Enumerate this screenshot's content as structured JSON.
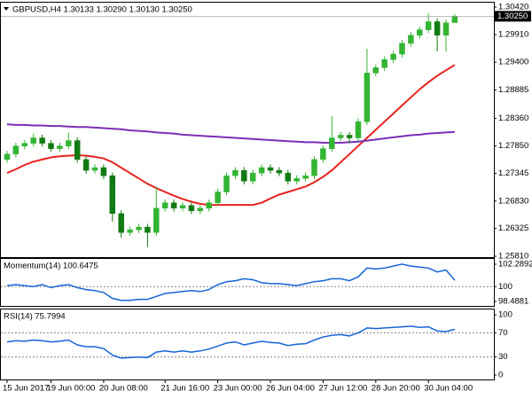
{
  "chart_data": [
    {
      "type": "candlestick",
      "title": "GBPUSD,H4  1.30133 1.30290 1.30130 1.30250",
      "x": [
        "15 Jun 2017",
        null,
        null,
        null,
        null,
        "19 Jun 00:00",
        null,
        null,
        null,
        null,
        null,
        "20 Jun 08:00",
        null,
        null,
        null,
        null,
        null,
        null,
        "21 Jun 16:00",
        null,
        null,
        null,
        null,
        null,
        "23 Jun 00:00",
        null,
        null,
        null,
        null,
        null,
        "26 Jun 04:00",
        null,
        null,
        null,
        null,
        null,
        "27 Jun 12:00",
        null,
        null,
        null,
        null,
        null,
        "28 Jun 20:00",
        null,
        null,
        null,
        null,
        null,
        "30 Jun 04:00",
        null,
        null,
        null
      ],
      "open": [
        1.276,
        1.277,
        1.2785,
        1.279,
        1.28,
        1.279,
        1.278,
        1.2785,
        1.2795,
        1.276,
        1.274,
        1.2745,
        1.273,
        1.266,
        1.2625,
        1.263,
        1.2635,
        1.2625,
        1.267,
        1.268,
        1.267,
        1.2675,
        1.2665,
        1.267,
        1.268,
        1.27,
        1.273,
        1.274,
        1.272,
        1.2735,
        1.2745,
        1.274,
        1.2735,
        1.272,
        1.2725,
        1.273,
        1.276,
        1.278,
        1.28,
        1.2805,
        1.28,
        1.283,
        1.292,
        1.293,
        1.2945,
        1.2955,
        1.2975,
        1.299,
        1.3,
        1.3015,
        1.299,
        1.30133
      ],
      "high": [
        1.2776,
        1.2791,
        1.2796,
        1.2808,
        1.2806,
        1.2796,
        1.2791,
        1.281,
        1.2801,
        1.2766,
        1.2751,
        1.2751,
        1.2736,
        1.2666,
        1.2636,
        1.2641,
        1.2641,
        1.271,
        1.2686,
        1.2686,
        1.2681,
        1.2681,
        1.2676,
        1.2686,
        1.2706,
        1.2736,
        1.2746,
        1.2746,
        1.2741,
        1.2751,
        1.2751,
        1.2746,
        1.2741,
        1.2731,
        1.2736,
        1.2766,
        1.2786,
        1.284,
        1.2811,
        1.2811,
        1.2836,
        1.2965,
        1.2936,
        1.2951,
        1.2961,
        1.2981,
        1.2996,
        1.3006,
        1.303,
        1.3021,
        1.3019,
        1.3029
      ],
      "low": [
        1.2754,
        1.2764,
        1.2779,
        1.2784,
        1.2784,
        1.2774,
        1.2774,
        1.2779,
        1.2754,
        1.2734,
        1.2734,
        1.2724,
        1.2645,
        1.2615,
        1.2619,
        1.2624,
        1.2598,
        1.2619,
        1.2664,
        1.2664,
        1.2664,
        1.2659,
        1.2659,
        1.2664,
        1.2674,
        1.2694,
        1.2724,
        1.2714,
        1.2714,
        1.2729,
        1.2734,
        1.2729,
        1.2714,
        1.2714,
        1.2719,
        1.2724,
        1.2754,
        1.2774,
        1.2794,
        1.279,
        1.2794,
        1.2824,
        1.2914,
        1.2924,
        1.2939,
        1.2949,
        1.2969,
        1.2984,
        1.2994,
        1.296,
        1.296,
        1.3013
      ],
      "close": [
        1.277,
        1.2785,
        1.279,
        1.28,
        1.279,
        1.278,
        1.2785,
        1.2795,
        1.276,
        1.274,
        1.2745,
        1.273,
        1.266,
        1.2625,
        1.263,
        1.2635,
        1.2625,
        1.267,
        1.268,
        1.267,
        1.2675,
        1.2665,
        1.267,
        1.268,
        1.27,
        1.273,
        1.274,
        1.272,
        1.2735,
        1.2745,
        1.274,
        1.2735,
        1.272,
        1.2725,
        1.273,
        1.276,
        1.278,
        1.28,
        1.2805,
        1.28,
        1.283,
        1.292,
        1.293,
        1.2945,
        1.2955,
        1.2975,
        1.299,
        1.3,
        1.3015,
        1.299,
        1.3013,
        1.3025
      ],
      "up_color": "#33b533",
      "down_color": "#127a12",
      "series": [
        {
          "color": "#e8231e",
          "values": [
            1.2735,
            1.2742,
            1.275,
            1.2756,
            1.276,
            1.2764,
            1.2766,
            1.2767,
            1.2768,
            1.2767,
            1.2765,
            1.2762,
            1.2755,
            1.2745,
            1.2735,
            1.2725,
            1.2715,
            1.2707,
            1.27,
            1.2693,
            1.2687,
            1.2682,
            1.2678,
            1.2676,
            1.2676,
            1.2676,
            1.2676,
            1.2676,
            1.2676,
            1.268,
            1.2688,
            1.2695,
            1.27,
            1.2705,
            1.271,
            1.2718,
            1.2728,
            1.274,
            1.2755,
            1.277,
            1.2785,
            1.28,
            1.2815,
            1.283,
            1.2845,
            1.286,
            1.2875,
            1.289,
            1.2903,
            1.2915,
            1.2925,
            1.2935
          ]
        },
        {
          "color": "#7e2fb5",
          "values": [
            1.2825,
            1.2824,
            1.2824,
            1.2823,
            1.2823,
            1.2822,
            1.2822,
            1.2821,
            1.282,
            1.282,
            1.2819,
            1.2818,
            1.2817,
            1.2816,
            1.2814,
            1.2813,
            1.2812,
            1.281,
            1.2809,
            1.2808,
            1.2806,
            1.2805,
            1.2804,
            1.2803,
            1.2802,
            1.2801,
            1.28,
            1.2799,
            1.2798,
            1.2797,
            1.2796,
            1.2795,
            1.2794,
            1.2793,
            1.2792,
            1.2792,
            1.2791,
            1.2791,
            1.2791,
            1.2792,
            1.2793,
            1.2795,
            1.2797,
            1.2799,
            1.2801,
            1.2803,
            1.2805,
            1.2806,
            1.2808,
            1.2809,
            1.281,
            1.2811
          ]
        }
      ],
      "ylim": [
        1.25794,
        1.30502
      ],
      "yticks": [
        {
          "value": 1.3042,
          "label": "1.30420"
        },
        {
          "value": 1.2991,
          "label": "1.29910"
        },
        {
          "value": 1.294,
          "label": "1.29400"
        },
        {
          "value": 1.28885,
          "label": "1.28885"
        },
        {
          "value": 1.2836,
          "label": "1.28360"
        },
        {
          "value": 1.2785,
          "label": "1.27850"
        },
        {
          "value": 1.27345,
          "label": "1.27345"
        },
        {
          "value": 1.2683,
          "label": "1.26830"
        },
        {
          "value": 1.26325,
          "label": "1.26325"
        },
        {
          "value": 1.2581,
          "label": "1.25810"
        }
      ],
      "current_price": {
        "value": 1.3025,
        "label": "1.30250"
      }
    },
    {
      "type": "line",
      "title": "Momentum(14) 100.6475",
      "series": [
        {
          "color": "#1565d8",
          "values": [
            100.1,
            100.2,
            100.1,
            100.0,
            100.2,
            99.9,
            100.1,
            100.2,
            99.9,
            99.7,
            99.6,
            99.4,
            98.8,
            98.6,
            98.6,
            98.7,
            98.7,
            99.0,
            99.3,
            99.4,
            99.5,
            99.6,
            99.5,
            99.7,
            100.2,
            100.5,
            100.6,
            100.8,
            100.7,
            100.4,
            100.3,
            100.3,
            100.2,
            100.1,
            100.3,
            100.5,
            100.6,
            100.8,
            100.8,
            100.6,
            101.0,
            101.9,
            101.8,
            101.9,
            102.1,
            102.3,
            102.1,
            102.0,
            101.9,
            101.5,
            101.7,
            100.65
          ]
        }
      ],
      "ylim": [
        98.03,
        102.83
      ],
      "yticks": [
        102.2892,
        100,
        98.4881
      ],
      "levels": [
        100
      ]
    },
    {
      "type": "line",
      "title": "RSI(14) 75.7994",
      "series": [
        {
          "color": "#1565d8",
          "values": [
            55,
            57,
            56,
            58,
            57,
            55,
            56,
            58,
            50,
            47,
            47,
            44,
            33,
            28,
            29,
            30,
            29,
            38,
            40,
            38,
            40,
            38,
            40,
            43,
            48,
            53,
            55,
            50,
            53,
            56,
            54,
            53,
            49,
            51,
            52,
            58,
            63,
            66,
            67,
            65,
            70,
            78,
            77,
            78,
            79,
            80,
            81,
            79,
            80,
            73,
            72,
            75.8
          ]
        }
      ],
      "ylim": [
        -7.4,
        108.8
      ],
      "yticks": [
        100,
        70,
        30,
        0
      ],
      "levels": [
        70,
        30
      ]
    }
  ]
}
